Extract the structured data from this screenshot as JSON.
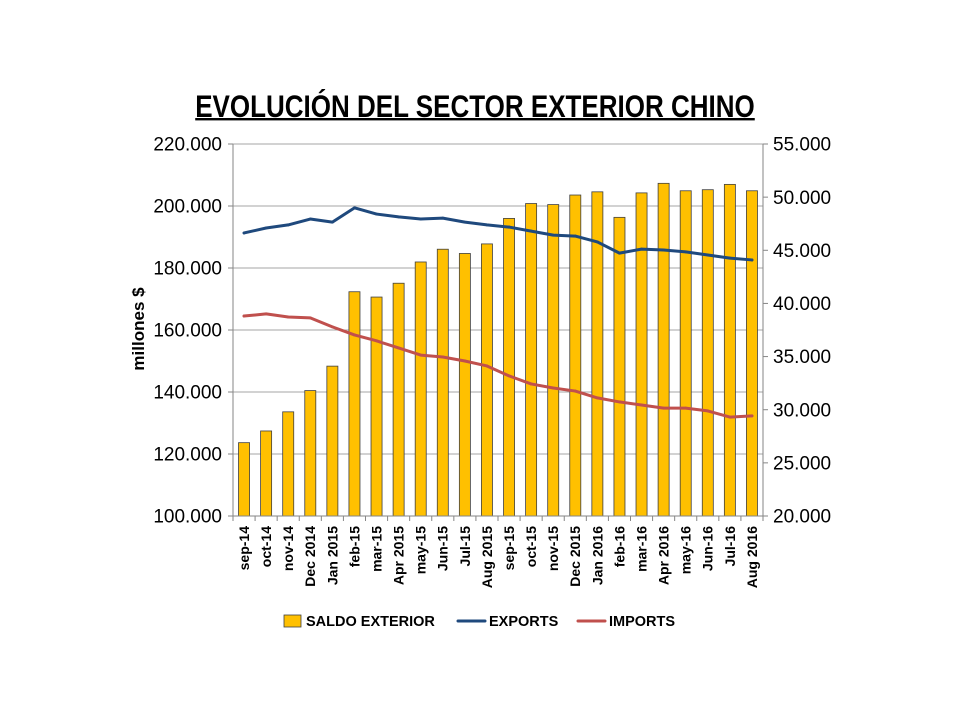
{
  "chart_data": {
    "type": "bar",
    "title": "EVOLUCIÓN DEL SECTOR EXTERIOR CHINO",
    "ylabel": "millones $",
    "categories": [
      "sep-14",
      "oct-14",
      "nov-14",
      "Dec 2014",
      "Jan 2015",
      "feb-15",
      "mar-15",
      "Apr 2015",
      "may-15",
      "Jun-15",
      "Jul-15",
      "Aug 2015",
      "sep-15",
      "oct-15",
      "nov-15",
      "Dec 2015",
      "Jan 2016",
      "feb-16",
      "mar-16",
      "Apr 2016",
      "may-16",
      "Jun-16",
      "Jul-16",
      "Aug 2016"
    ],
    "ylim": [
      100000,
      220000
    ],
    "yticks": [
      100000,
      120000,
      140000,
      160000,
      180000,
      200000,
      220000
    ],
    "ytick_labels": [
      "100.000",
      "120.000",
      "140.000",
      "160.000",
      "180.000",
      "200.000",
      "220.000"
    ],
    "y2lim": [
      20000,
      55000
    ],
    "y2ticks": [
      20000,
      25000,
      30000,
      35000,
      40000,
      45000,
      50000,
      55000
    ],
    "y2tick_labels": [
      "20.000",
      "25.000",
      "30.000",
      "35.000",
      "40.000",
      "45.000",
      "50.000",
      "55.000"
    ],
    "grid": true,
    "legend": "bottom",
    "series": [
      {
        "name": "SALDO EXTERIOR",
        "type": "bar",
        "secondary_y": true,
        "color": "#FFC000",
        "edge_color": "#404040",
        "values": [
          26900,
          28000,
          29800,
          31800,
          34100,
          41100,
          40600,
          41900,
          43900,
          45100,
          44700,
          45600,
          48000,
          49400,
          49300,
          50200,
          50500,
          48100,
          50400,
          51300,
          50600,
          50700,
          51200,
          50600
        ]
      },
      {
        "name": "EXPORTS",
        "type": "line",
        "secondary_y": false,
        "color": "#1F497D",
        "values": [
          191300,
          192900,
          193900,
          195800,
          194800,
          199400,
          197400,
          196500,
          195800,
          196100,
          194800,
          193900,
          193200,
          191900,
          190600,
          190300,
          188400,
          184800,
          186100,
          185800,
          185200,
          184200,
          183200,
          182600
        ]
      },
      {
        "name": "IMPORTS",
        "type": "line",
        "secondary_y": false,
        "color": "#C0504D",
        "values": [
          164500,
          165200,
          164200,
          163900,
          161000,
          158400,
          156500,
          154200,
          151900,
          151300,
          150000,
          148400,
          145200,
          142600,
          141300,
          140300,
          138100,
          136800,
          135800,
          134800,
          134800,
          133900,
          131900,
          132300
        ]
      }
    ]
  }
}
